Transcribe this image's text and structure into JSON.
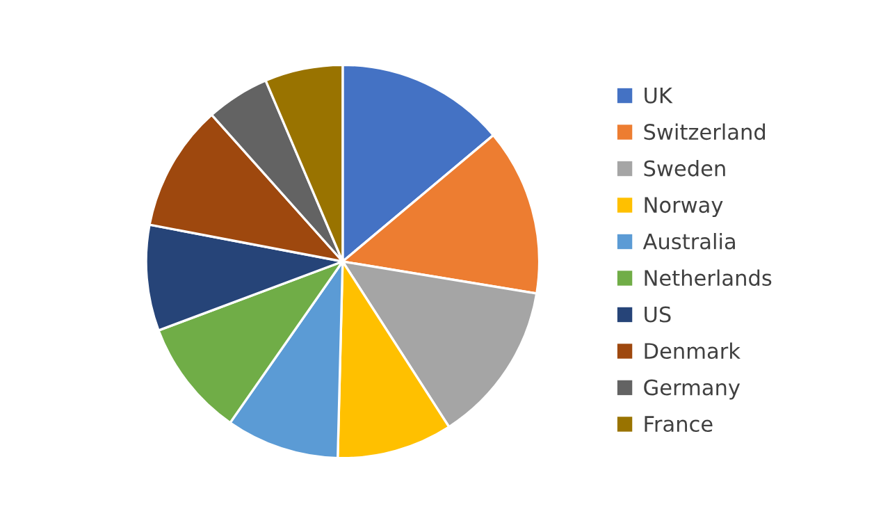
{
  "chart_data": {
    "type": "pie",
    "categories": [
      "UK",
      "Switzerland",
      "Sweden",
      "Norway",
      "Australia",
      "Netherlands",
      "US",
      "Denmark",
      "Germany",
      "France"
    ],
    "values": [
      13.9,
      13.7,
      13.3,
      9.5,
      9.3,
      9.6,
      8.7,
      10.4,
      5.2,
      6.4
    ],
    "colors": [
      "#4472c4",
      "#ed7d31",
      "#a5a5a5",
      "#ffc000",
      "#5b9bd5",
      "#70ad47",
      "#264478",
      "#9e480e",
      "#636363",
      "#997300"
    ],
    "legend": "right"
  }
}
